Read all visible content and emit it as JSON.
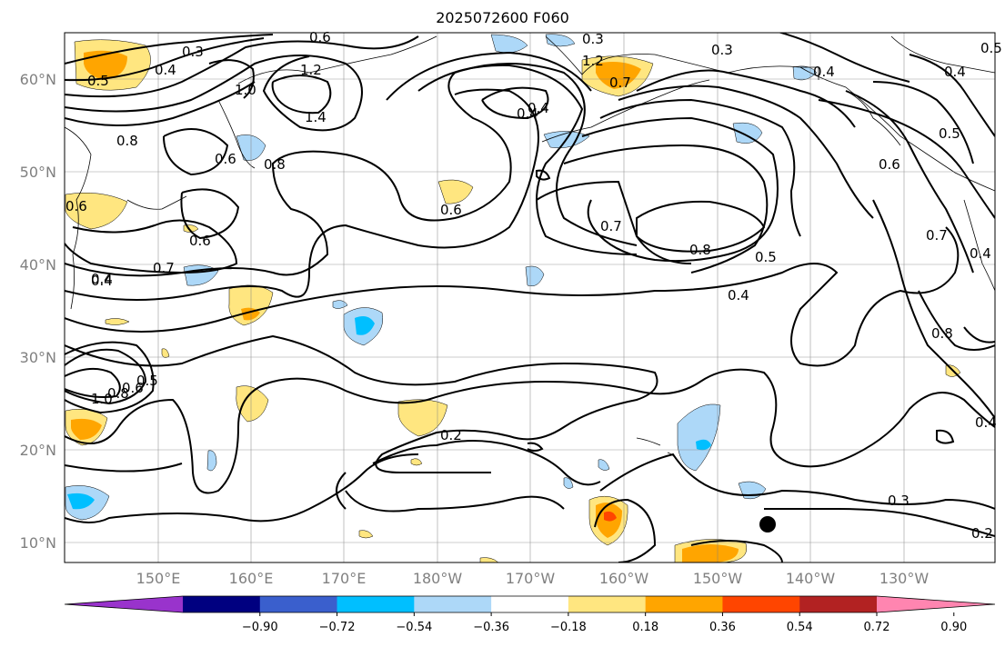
{
  "title": "2025072600 F060",
  "map": {
    "lat_labels": [
      "60°N",
      "50°N",
      "40°N",
      "30°N",
      "20°N",
      "10°N"
    ],
    "lon_labels": [
      "150°E",
      "160°E",
      "170°E",
      "180°W",
      "170°W",
      "160°W",
      "150°W",
      "140°W",
      "130°W"
    ],
    "contour_labels": [
      "0.3",
      "0.4",
      "0.5",
      "0.6",
      "1.2",
      "1.0",
      "1.4",
      "0.8",
      "0.6",
      "0.6",
      "0.6",
      "0.7",
      "0.4",
      "0.8",
      "0.5",
      "0.4",
      "0.7",
      "0.8",
      "0.5",
      "0.4",
      "0.3",
      "0.4",
      "0.5",
      "0.6",
      "0.7",
      "0.4",
      "0.8",
      "0.4",
      "0.2",
      "0.3",
      "0.2",
      "1.0",
      "0.8",
      "0.6",
      "0.5",
      "0.4",
      "1.2",
      "0.7",
      "0.4",
      "0.6",
      "0.3",
      "0.4"
    ],
    "marker": "black-dot",
    "colors": {
      "contour": "#000000",
      "grid": "#808080",
      "land_outline": "#000000"
    }
  },
  "colorbar": {
    "tick_labels": [
      "−0.90",
      "−0.72",
      "−0.54",
      "−0.36",
      "−0.18",
      "0.18",
      "0.36",
      "0.54",
      "0.72",
      "0.90"
    ],
    "colors": [
      "#9933cc",
      "#000080",
      "#3a5fcd",
      "#00bfff",
      "#add8f8",
      "#ffffff",
      "#ffe680",
      "#ffa500",
      "#ff4500",
      "#b22222",
      "#ff85b0"
    ]
  }
}
